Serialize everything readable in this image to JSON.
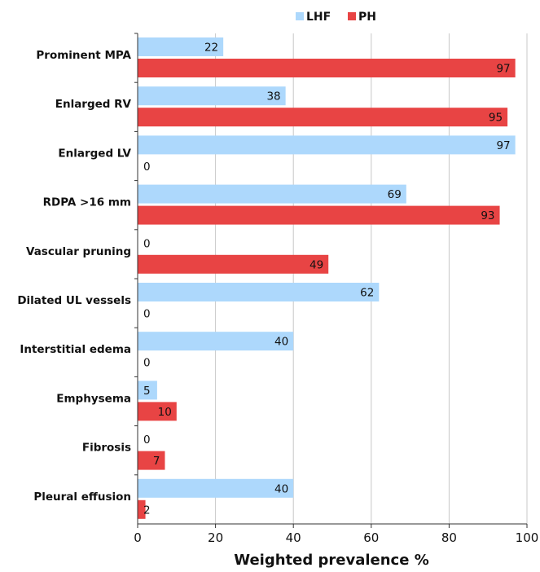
{
  "chart_data": {
    "type": "bar",
    "orientation": "horizontal",
    "categories": [
      "Prominent MPA",
      "Enlarged RV",
      "Enlarged LV",
      "RDPA >16 mm",
      "Vascular pruning",
      "Dilated UL vessels",
      "Interstitial edema",
      "Emphysema",
      "Fibrosis",
      "Pleural effusion"
    ],
    "series": [
      {
        "name": "LHF",
        "color": "#add8fc",
        "values": [
          22,
          38,
          97,
          69,
          0,
          62,
          40,
          5,
          0,
          40
        ]
      },
      {
        "name": "PH",
        "color": "#e84444",
        "values": [
          97,
          95,
          0,
          93,
          49,
          0,
          0,
          10,
          7,
          2
        ]
      }
    ],
    "xlabel": "Weighted prevalence %",
    "ylabel": "",
    "xlim": [
      0,
      100
    ],
    "xticks": [
      0,
      20,
      40,
      60,
      80,
      100
    ],
    "grid": "vertical",
    "legend": "top"
  }
}
